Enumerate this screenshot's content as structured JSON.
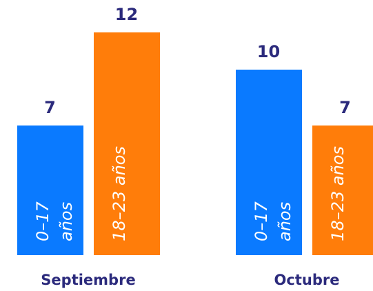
{
  "chart_data": {
    "type": "bar",
    "categories": [
      "Septiembre",
      "Octubre"
    ],
    "series": [
      {
        "name": "0–17 años",
        "color": "#0a7aff",
        "values": [
          7,
          10
        ]
      },
      {
        "name": "18–23 años",
        "color": "#ff7d0a",
        "values": [
          12,
          7
        ]
      }
    ]
  }
}
